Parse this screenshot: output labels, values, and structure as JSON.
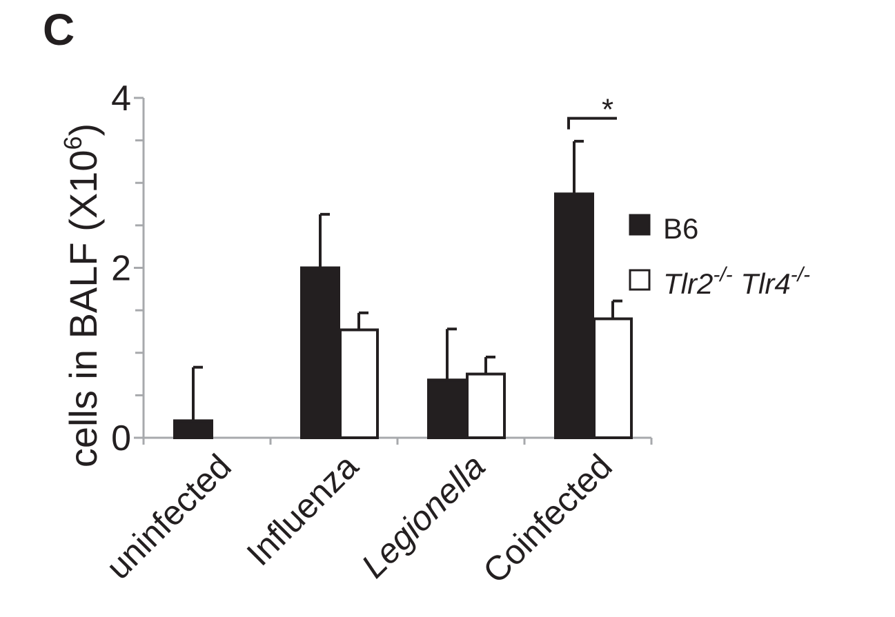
{
  "panel_letter": "C",
  "chart_data": {
    "type": "bar",
    "title": "",
    "xlabel": "",
    "ylabel": "cells in BALF (X10",
    "ylabel_superscript": "6",
    "ylabel_close": ")",
    "ylim": [
      0,
      4
    ],
    "yticks": [
      0,
      2,
      4
    ],
    "minor_yticks": [
      0.5,
      1,
      1.5,
      2.5,
      3,
      3.5
    ],
    "categories": [
      "uninfected",
      "Influenza",
      "Legionella",
      "Coinfected"
    ],
    "category_italic": [
      false,
      false,
      true,
      false
    ],
    "series": [
      {
        "name": "B6",
        "color": "#231f20",
        "values": [
          0.2,
          2.0,
          0.68,
          2.87
        ],
        "errors": [
          0.63,
          0.63,
          0.6,
          0.62
        ]
      },
      {
        "name_parts": [
          "Tlr2",
          "-/-",
          " Tlr4",
          "-/-"
        ],
        "color": "#ffffff",
        "values": [
          null,
          1.27,
          0.75,
          1.4
        ],
        "errors": [
          null,
          0.2,
          0.2,
          0.21
        ]
      }
    ],
    "legend_position": "right",
    "significance": [
      {
        "category": "Coinfected",
        "label": "*"
      }
    ]
  }
}
